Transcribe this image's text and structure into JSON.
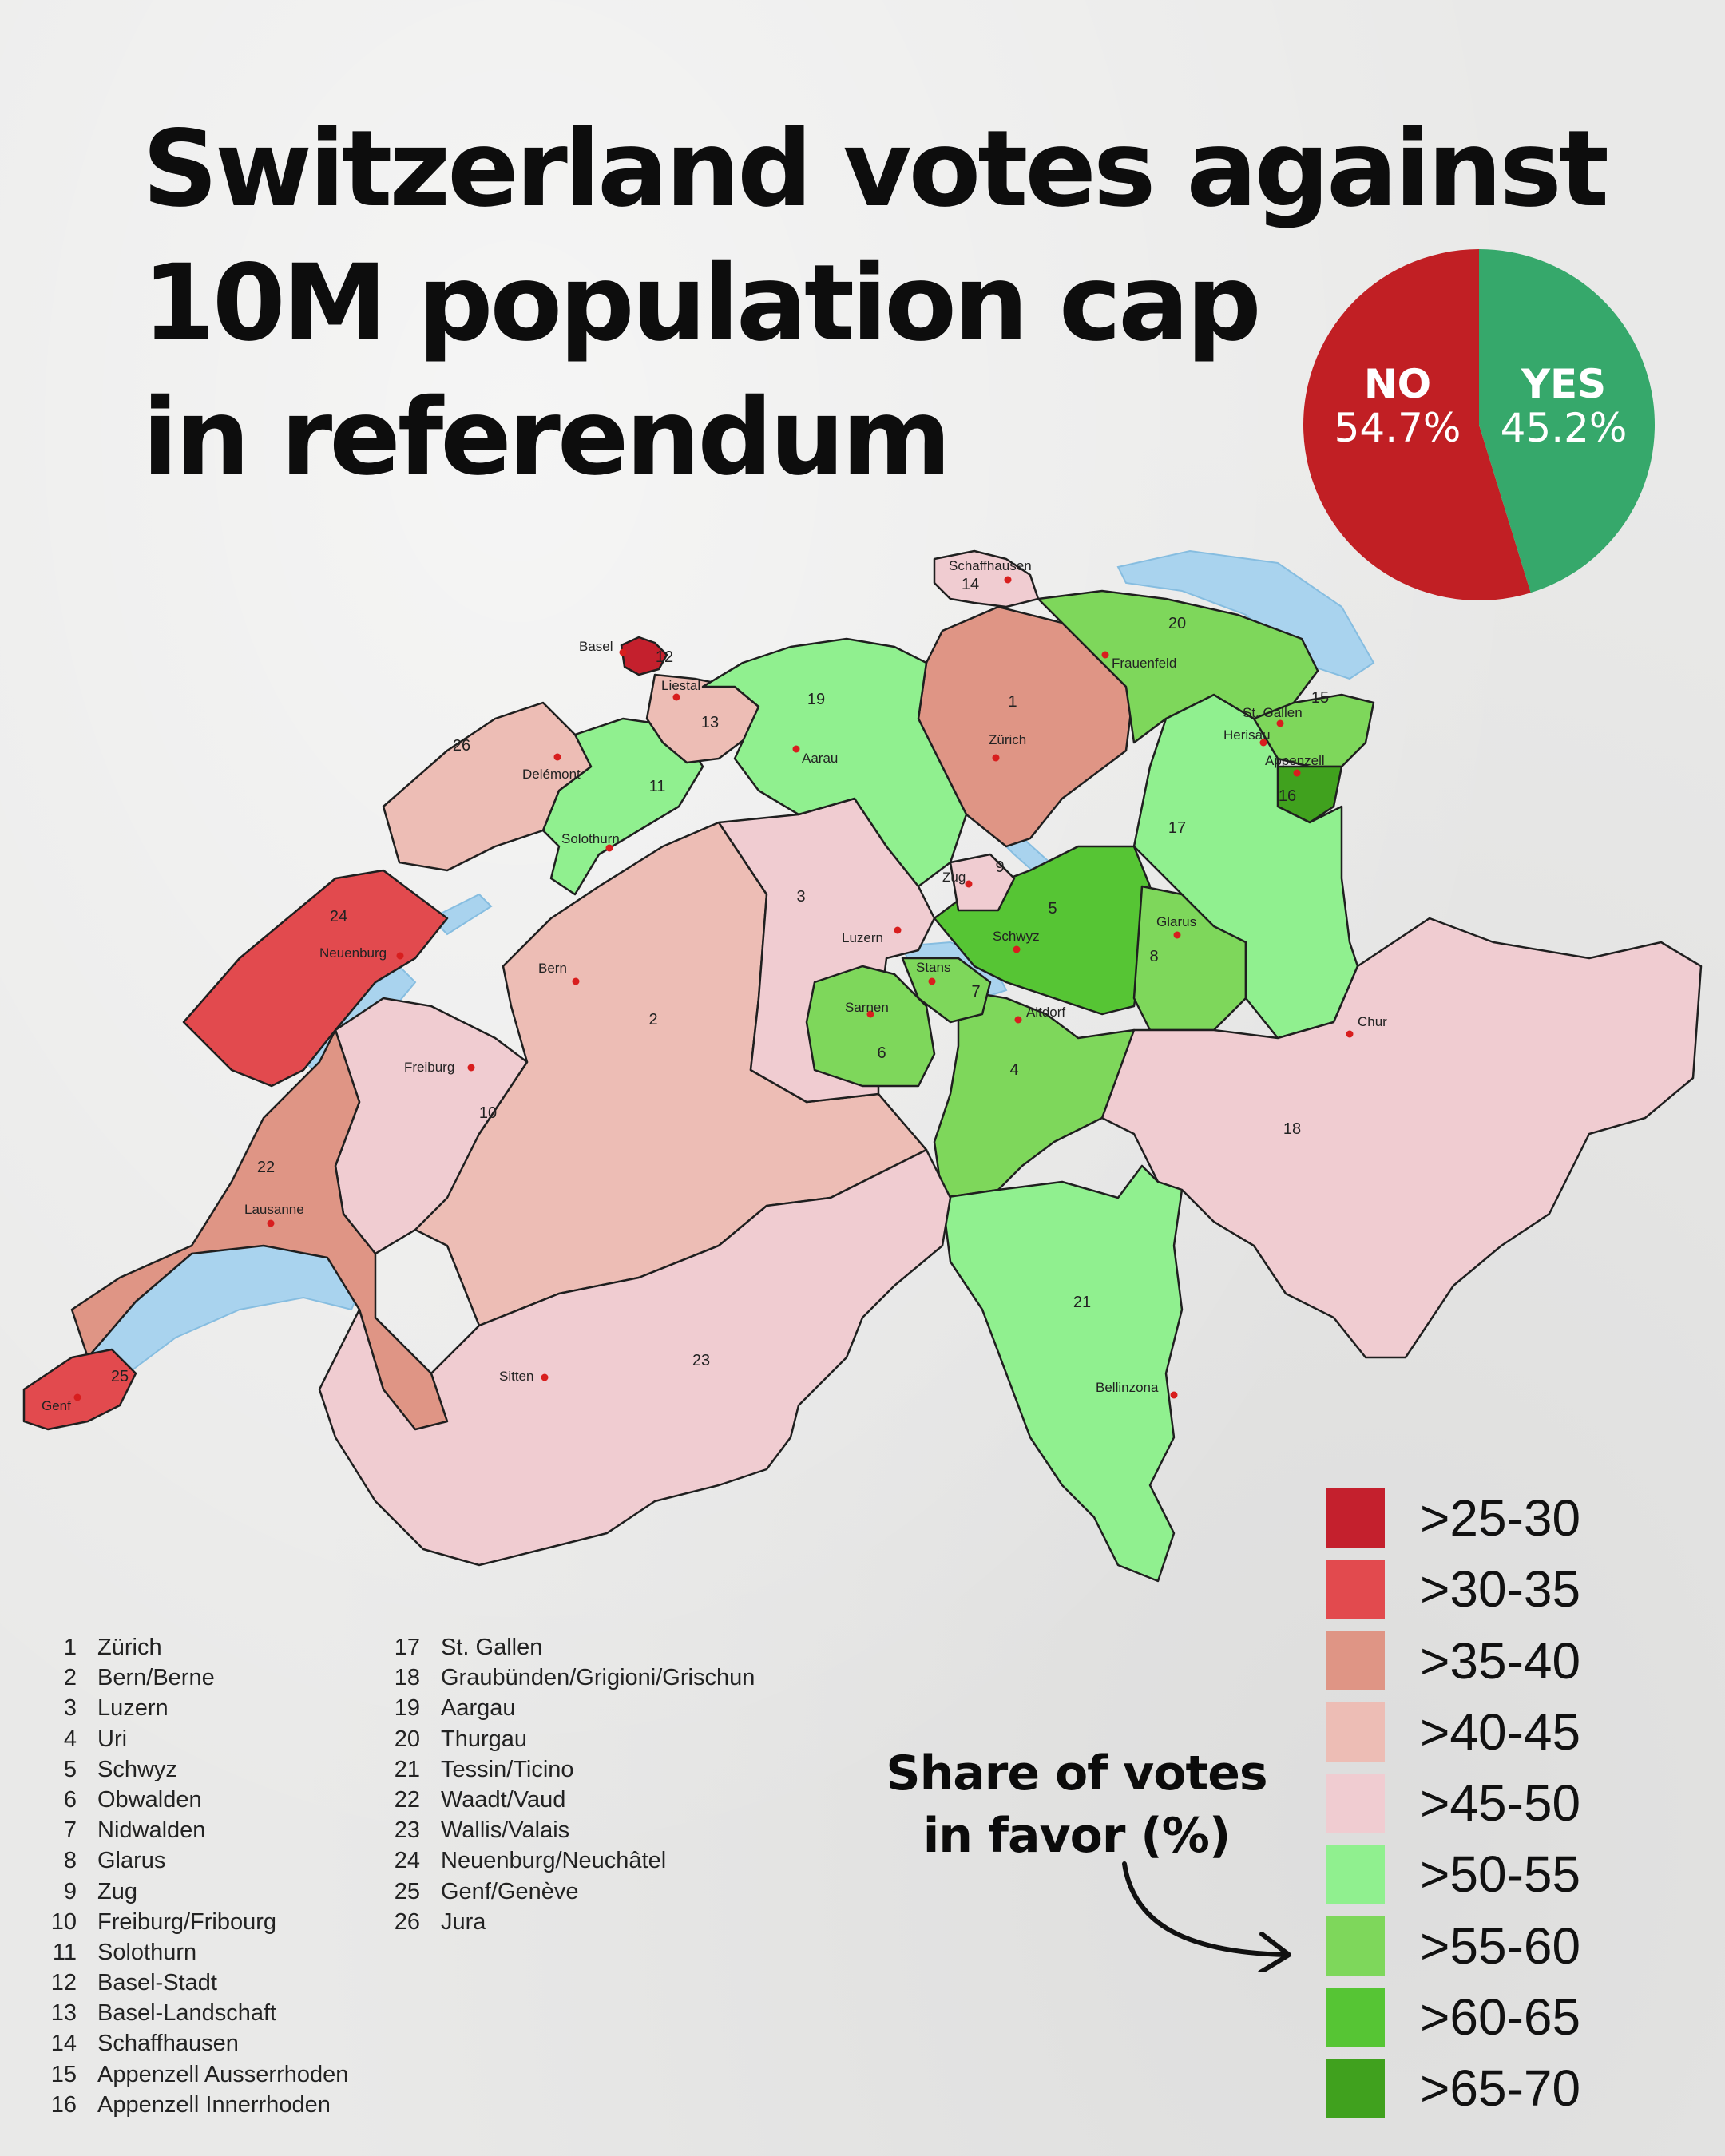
{
  "title": {
    "lines": [
      "Switzerland votes against",
      "10M population cap",
      "in referendum"
    ]
  },
  "result": {
    "no_label": "NO",
    "no_value": "54.7%",
    "yes_label": "YES",
    "yes_value": "45.2%",
    "no_share": 54.7,
    "yes_share": 45.2,
    "no_color": "#c11f24",
    "yes_color": "#36a86b"
  },
  "map": {
    "cities": [
      "Schaffhausen",
      "Basel",
      "Liestal",
      "Frauenfeld",
      "St. Gallen",
      "Herisau",
      "Appenzell",
      "Zürich",
      "Aarau",
      "Delémont",
      "Solothurn",
      "Zug",
      "Luzern",
      "Schwyz",
      "Glarus",
      "Stans",
      "Sarnen",
      "Altdorf",
      "Neuenburg",
      "Bern",
      "Chur",
      "Freiburg",
      "Lausanne",
      "Sitten",
      "Bellinzona",
      "Genf"
    ],
    "lake_color": "#a9d3ee",
    "border_color": "#1f1f1f"
  },
  "cantons": [
    {
      "num": "1",
      "name": "Zürich",
      "bin": 2
    },
    {
      "num": "2",
      "name": "Bern/Berne",
      "bin": 3
    },
    {
      "num": "3",
      "name": "Luzern",
      "bin": 4
    },
    {
      "num": "4",
      "name": "Uri",
      "bin": 6
    },
    {
      "num": "5",
      "name": "Schwyz",
      "bin": 7
    },
    {
      "num": "6",
      "name": "Obwalden",
      "bin": 6
    },
    {
      "num": "7",
      "name": "Nidwalden",
      "bin": 6
    },
    {
      "num": "8",
      "name": "Glarus",
      "bin": 6
    },
    {
      "num": "9",
      "name": "Zug",
      "bin": 4
    },
    {
      "num": "10",
      "name": "Freiburg/Fribourg",
      "bin": 4
    },
    {
      "num": "11",
      "name": "Solothurn",
      "bin": 5
    },
    {
      "num": "12",
      "name": "Basel-Stadt",
      "bin": 0
    },
    {
      "num": "13",
      "name": "Basel-Landschaft",
      "bin": 3
    },
    {
      "num": "14",
      "name": "Schaffhausen",
      "bin": 4
    },
    {
      "num": "15",
      "name": "Appenzell Ausserrhoden",
      "bin": 6
    },
    {
      "num": "16",
      "name": "Appenzell Innerrhoden",
      "bin": 8
    },
    {
      "num": "17",
      "name": "St. Gallen",
      "bin": 5
    },
    {
      "num": "18",
      "name": "Graubünden/Grigioni/Grischun",
      "bin": 4
    },
    {
      "num": "19",
      "name": "Aargau",
      "bin": 5
    },
    {
      "num": "20",
      "name": "Thurgau",
      "bin": 6
    },
    {
      "num": "21",
      "name": "Tessin/Ticino",
      "bin": 5
    },
    {
      "num": "22",
      "name": "Waadt/Vaud",
      "bin": 2
    },
    {
      "num": "23",
      "name": "Wallis/Valais",
      "bin": 4
    },
    {
      "num": "24",
      "name": "Neuenburg/Neuchâtel",
      "bin": 1
    },
    {
      "num": "25",
      "name": "Genf/Genève",
      "bin": 1
    },
    {
      "num": "26",
      "name": "Jura",
      "bin": 3
    }
  ],
  "legend": {
    "title_lines": [
      "Share of votes",
      "in favor (%)"
    ],
    "items": [
      {
        "label": ">25-30",
        "color": "#c4202d"
      },
      {
        "label": ">30-35",
        "color": "#e24a4e"
      },
      {
        "label": ">35-40",
        "color": "#df9585"
      },
      {
        "label": ">40-45",
        "color": "#edbdb5"
      },
      {
        "label": ">45-50",
        "color": "#f0ccd1"
      },
      {
        "label": ">50-55",
        "color": "#90f08f"
      },
      {
        "label": ">55-60",
        "color": "#7ed75b"
      },
      {
        "label": ">60-65",
        "color": "#56c534"
      },
      {
        "label": ">65-70",
        "color": "#40a11e"
      }
    ]
  }
}
